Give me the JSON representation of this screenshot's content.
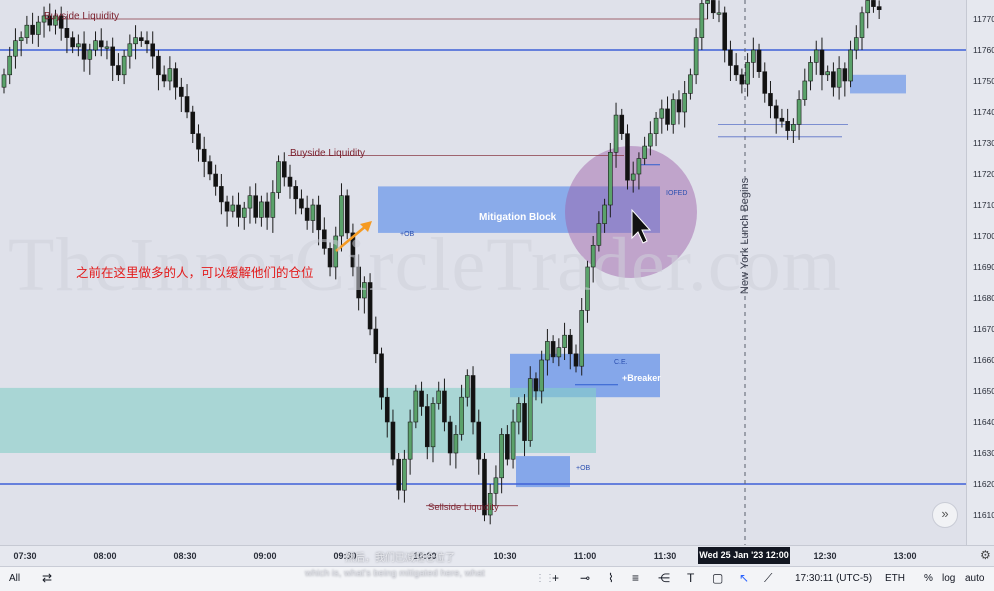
{
  "chart_data": {
    "type": "candlestick",
    "instrument_watermark": "TheInnerCircleTrader.com",
    "y_axis": {
      "ticks": [
        "11770",
        "11760",
        "11750",
        "11740",
        "11730",
        "11720",
        "11710",
        "11700",
        "11690",
        "11680",
        "11670",
        "11660",
        "11650",
        "11640",
        "11630",
        "11620",
        "11610"
      ],
      "ylim": [
        11606,
        11778
      ]
    },
    "x_axis": {
      "ticks": [
        "07:30",
        "08:00",
        "08:30",
        "09:00",
        "09:30",
        "10:00",
        "10:30",
        "11:00",
        "11:30",
        "12:00",
        "12:30",
        "13:00"
      ],
      "highlight": "Wed 25 Jan '23   12:00"
    },
    "candles_closes": [
      11752,
      11758,
      11763,
      11764,
      11768,
      11765,
      11769,
      11771,
      11768,
      11771,
      11767,
      11764,
      11761,
      11762,
      11757,
      11760,
      11763,
      11761,
      11761,
      11755,
      11752,
      11758,
      11762,
      11764,
      11763,
      11762,
      11758,
      11752,
      11750,
      11754,
      11748,
      11745,
      11740,
      11733,
      11728,
      11724,
      11720,
      11716,
      11711,
      11708,
      11710,
      11706,
      11709,
      11713,
      11706,
      11711,
      11706,
      11714,
      11724,
      11719,
      11716,
      11712,
      11709,
      11705,
      11710,
      11702,
      11696,
      11690,
      11700,
      11713,
      11701,
      11690,
      11680,
      11685,
      11670,
      11662,
      11648,
      11640,
      11628,
      11618,
      11628,
      11640,
      11650,
      11645,
      11632,
      11646,
      11650,
      11640,
      11630,
      11636,
      11648,
      11655,
      11640,
      11628,
      11610,
      11617,
      11622,
      11636,
      11628,
      11640,
      11646,
      11634,
      11654,
      11650,
      11660,
      11666,
      11661,
      11664,
      11668,
      11662,
      11658,
      11676,
      11690,
      11697,
      11704,
      11710,
      11727,
      11739,
      11733,
      11718,
      11720,
      11725,
      11729,
      11733,
      11738,
      11741,
      11736,
      11744,
      11740,
      11746,
      11752,
      11764,
      11775,
      11776,
      11772,
      11772,
      11760,
      11755,
      11752,
      11749,
      11756,
      11760,
      11753,
      11746,
      11742,
      11738,
      11737,
      11734,
      11736,
      11744,
      11750,
      11756,
      11760,
      11752,
      11753,
      11748,
      11754,
      11750,
      11760,
      11764,
      11772,
      11776,
      11774,
      11773
    ],
    "series": [
      {
        "name": "Buyside Liquidity",
        "value": 11770
      },
      {
        "name": "Buyside Liquidity",
        "value": 11726
      },
      {
        "name": "Sellside Liquidity",
        "value": 11613
      }
    ],
    "horizontal_lines": [
      11760,
      11620
    ],
    "zones": [
      {
        "label": "Mitigation Block",
        "top": 11716,
        "bottom": 11701
      },
      {
        "label": "+Breaker",
        "top": 11662,
        "bottom": 11648
      },
      {
        "label": "+OB",
        "top": 11629,
        "bottom": 11619
      },
      {
        "label": "",
        "top": 11752,
        "bottom": 11746
      },
      {
        "label": "",
        "top": 11651,
        "bottom": 11630
      }
    ],
    "annotations": [
      "+OB",
      "IOFED",
      "C.E.",
      "+OB"
    ],
    "colors": {
      "bull": "#5aa26a",
      "bear": "#121212",
      "level_line": "#3f61d8",
      "zone_blue": "#6e98ea",
      "zone_teal": "#86cfc6"
    }
  },
  "labels": {
    "buyside_top": "Buyside Liquidity",
    "buyside_mid": "Buyside Liquidity",
    "sellside": "Sellside Liquidity",
    "mitigation_block": "Mitigation Block",
    "breaker": "+Breaker",
    "ob_upper": "+OB",
    "ob_lower": "+OB",
    "iofed": "IOFED",
    "ce": "C.E.",
    "ny_lunch": "New York Lunch Begins",
    "cn_note": "之前在这里做多的人，可以缓解他们的仓位",
    "watermark": "TheInnerCircleTrader.com",
    "subtitle_cn": "然后，我们已减轻仓位了",
    "subtitle_en": "which is, what's being mitigated here, what"
  },
  "bottom_bar": {
    "all": "All",
    "clock": "17:30:11 (UTC-5)",
    "session": "ETH",
    "percent": "%",
    "log": "log",
    "auto": "auto"
  },
  "icons": [
    "compare-icon",
    "crosshair-icon",
    "trendline-icon",
    "fib-icon",
    "parallel-icon",
    "path-icon",
    "text-icon",
    "rectangle-icon",
    "cursor-icon",
    "ruler-icon",
    "gear-icon",
    "scroll-right-icon"
  ]
}
